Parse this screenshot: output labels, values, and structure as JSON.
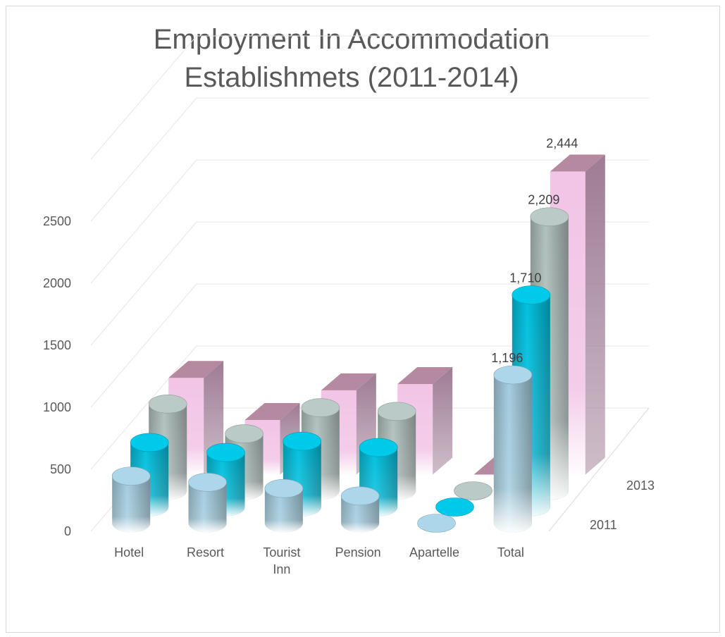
{
  "chart_data": {
    "type": "bar",
    "title_lines": [
      "Employment In Accommodation",
      "Establishmets (2011-2014)"
    ],
    "categories": [
      "Hotel",
      "Resort",
      "Tourist Inn",
      "Pension",
      "Apartelle",
      "Total"
    ],
    "category_lines": [
      [
        "Hotel"
      ],
      [
        "Resort"
      ],
      [
        "Tourist",
        "Inn"
      ],
      [
        "Pension"
      ],
      [
        "Apartelle"
      ],
      [
        "Total"
      ]
    ],
    "series_depth_labels": [
      "2011",
      "2013"
    ],
    "yticks": [
      0,
      500,
      1000,
      1500,
      2000,
      2500
    ],
    "ylim": [
      0,
      2800
    ],
    "series": [
      {
        "values": [
          380,
          330,
          280,
          220,
          0,
          1196
        ],
        "shape": "cylinder",
        "color": "#9cc3d5"
      },
      {
        "values": [
          520,
          440,
          530,
          480,
          0,
          1710
        ],
        "shape": "cylinder",
        "color": "#00b8d4"
      },
      {
        "values": [
          700,
          460,
          670,
          640,
          0,
          2209
        ],
        "shape": "cylinder",
        "color": "#a9b8b4"
      },
      {
        "values": [
          780,
          440,
          680,
          730,
          0,
          2444
        ],
        "shape": "box",
        "color": "#f2c4e6"
      }
    ],
    "data_labels": {
      "category": "Total",
      "values": [
        "1,196",
        "1,710",
        "2,209",
        "2,444"
      ]
    },
    "grid": true,
    "legend": "none"
  }
}
